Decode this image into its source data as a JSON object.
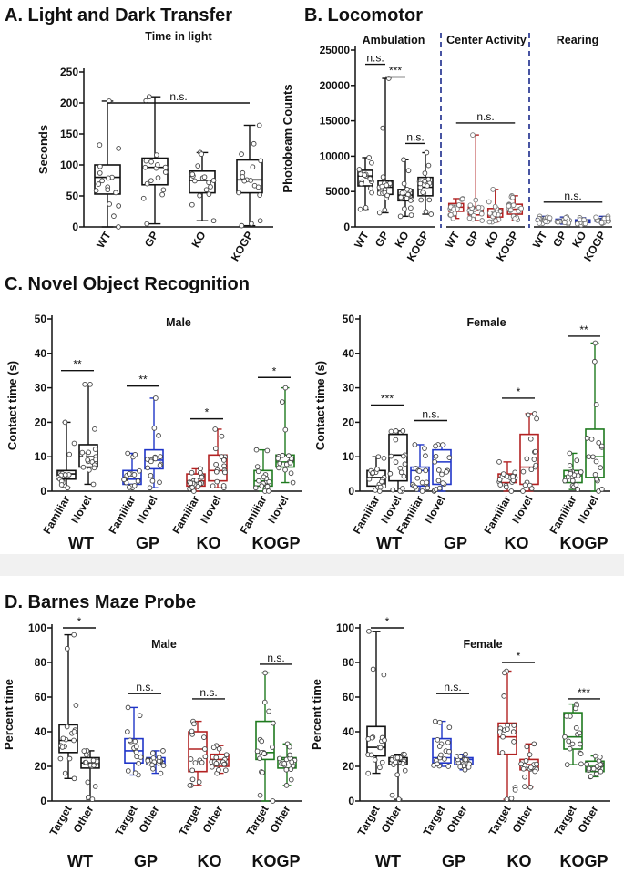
{
  "chart_data": [
    {
      "id": "A",
      "panel_label": "A. Light and Dark Transfer",
      "type": "box",
      "subtitle": "Time in light",
      "ylabel": "Seconds",
      "ylim": [
        0,
        250
      ],
      "yticks": [
        0,
        50,
        100,
        150,
        200,
        250
      ],
      "categories": [
        "WT",
        "GP",
        "KO",
        "KOGP"
      ],
      "colors": [
        "#111111",
        "#111111",
        "#111111",
        "#111111"
      ],
      "boxes": [
        {
          "min": 0,
          "q1": 53,
          "median": 80,
          "q3": 100,
          "max": 203
        },
        {
          "min": 5,
          "q1": 68,
          "median": 96,
          "q3": 111,
          "max": 210
        },
        {
          "min": 10,
          "q1": 55,
          "median": 75,
          "q3": 90,
          "max": 120
        },
        {
          "min": 2,
          "q1": 55,
          "median": 76,
          "q3": 108,
          "max": 164
        }
      ],
      "sig": [
        {
          "from": 0,
          "to": 3,
          "y": 200,
          "label": "n.s."
        }
      ]
    },
    {
      "id": "B1",
      "panel_label": "B. Locomotor",
      "type": "box",
      "subtitle": "Ambulation",
      "ylabel": "Photobeam Counts",
      "ylim": [
        0,
        25000
      ],
      "yticks": [
        0,
        5000,
        10000,
        15000,
        20000,
        25000
      ],
      "categories": [
        "WT",
        "GP",
        "KO",
        "KOGP"
      ],
      "colors": [
        "#111111",
        "#111111",
        "#111111",
        "#111111"
      ],
      "boxes": [
        {
          "min": 2500,
          "q1": 5800,
          "median": 7200,
          "q3": 8000,
          "max": 9800
        },
        {
          "min": 2000,
          "q1": 4600,
          "median": 5600,
          "q3": 6500,
          "max": 21000
        },
        {
          "min": 1500,
          "q1": 3700,
          "median": 4500,
          "q3": 5300,
          "max": 9500
        },
        {
          "min": 1800,
          "q1": 4400,
          "median": 5600,
          "q3": 7000,
          "max": 10500
        }
      ],
      "sig": [
        {
          "from": 0,
          "to": 1,
          "y": 23000,
          "label": "n.s."
        },
        {
          "from": 1,
          "to": 2,
          "y": 21200,
          "label": "***"
        },
        {
          "from": 2,
          "to": 3,
          "y": 11800,
          "label": "n.s."
        }
      ]
    },
    {
      "id": "B2",
      "type": "box",
      "subtitle": "Center Activity",
      "ylim": [
        0,
        25000
      ],
      "categories": [
        "WT",
        "GP",
        "KO",
        "KOGP"
      ],
      "colors": [
        "#b22222",
        "#b22222",
        "#b22222",
        "#b22222"
      ],
      "boxes": [
        {
          "min": 1200,
          "q1": 2200,
          "median": 2800,
          "q3": 3300,
          "max": 4000
        },
        {
          "min": 900,
          "q1": 1700,
          "median": 2300,
          "q3": 2800,
          "max": 13000
        },
        {
          "min": 700,
          "q1": 1400,
          "median": 1900,
          "q3": 2600,
          "max": 5300
        },
        {
          "min": 1000,
          "q1": 1800,
          "median": 2500,
          "q3": 3200,
          "max": 4400
        }
      ],
      "sig": [
        {
          "from": 0,
          "to": 3,
          "y": 14700,
          "label": "n.s."
        }
      ]
    },
    {
      "id": "B3",
      "type": "box",
      "subtitle": "Rearing",
      "ylim": [
        0,
        25000
      ],
      "categories": [
        "WT",
        "GP",
        "KO",
        "KOGP"
      ],
      "colors": [
        "#2233aa",
        "#2233aa",
        "#2233aa",
        "#2233aa"
      ],
      "boxes": [
        {
          "min": 500,
          "q1": 800,
          "median": 1000,
          "q3": 1200,
          "max": 1500
        },
        {
          "min": 400,
          "q1": 700,
          "median": 900,
          "q3": 1100,
          "max": 1400
        },
        {
          "min": 300,
          "q1": 600,
          "median": 800,
          "q3": 1000,
          "max": 1300
        },
        {
          "min": 500,
          "q1": 800,
          "median": 1000,
          "q3": 1200,
          "max": 1500
        }
      ],
      "sig": [
        {
          "from": 0,
          "to": 3,
          "y": 3500,
          "label": "n.s."
        }
      ]
    },
    {
      "id": "C1",
      "panel_label": "C. Novel Object Recognition",
      "type": "box",
      "subtitle": "Male",
      "ylabel": "Contact time (s)",
      "ylim": [
        0,
        50
      ],
      "yticks": [
        0,
        10,
        20,
        30,
        40,
        50
      ],
      "categories": [
        "Familiar",
        "Novel",
        "Familiar",
        "Novel",
        "Familiar",
        "Novel",
        "Familiar",
        "Novel"
      ],
      "groups": [
        "WT",
        "GP",
        "KO",
        "KOGP"
      ],
      "colors": [
        "#111111",
        "#111111",
        "#1f35c8",
        "#1f35c8",
        "#b22222",
        "#b22222",
        "#1e7a1e",
        "#1e7a1e"
      ],
      "boxes": [
        {
          "min": 1,
          "q1": 3.5,
          "median": 5,
          "q3": 6,
          "max": 20
        },
        {
          "min": 2,
          "q1": 7,
          "median": 10,
          "q3": 13.5,
          "max": 31
        },
        {
          "min": 1,
          "q1": 2,
          "median": 3.5,
          "q3": 6,
          "max": 11
        },
        {
          "min": 1,
          "q1": 6.5,
          "median": 9,
          "q3": 12,
          "max": 27
        },
        {
          "min": 0,
          "q1": 1.5,
          "median": 3,
          "q3": 5,
          "max": 6.5
        },
        {
          "min": 1,
          "q1": 3,
          "median": 6,
          "q3": 10.5,
          "max": 18
        },
        {
          "min": 0,
          "q1": 1.5,
          "median": 3,
          "q3": 6,
          "max": 12
        },
        {
          "min": 2.5,
          "q1": 7,
          "median": 8.5,
          "q3": 10.5,
          "max": 30
        }
      ],
      "sig": [
        {
          "from": 0,
          "to": 1,
          "y": 35,
          "label": "**"
        },
        {
          "from": 2,
          "to": 3,
          "y": 30.5,
          "label": "**"
        },
        {
          "from": 4,
          "to": 5,
          "y": 21,
          "label": "*"
        },
        {
          "from": 6,
          "to": 7,
          "y": 33,
          "label": "*"
        }
      ]
    },
    {
      "id": "C2",
      "type": "box",
      "subtitle": "Female",
      "ylabel": "Contact time (s)",
      "ylim": [
        0,
        50
      ],
      "yticks": [
        0,
        10,
        20,
        30,
        40,
        50
      ],
      "categories": [
        "Familiar",
        "Novel",
        "Familiar",
        "Novel",
        "Familiar",
        "Novel",
        "Familiar",
        "Novel"
      ],
      "groups": [
        "WT",
        "GP",
        "KO",
        "KOGP"
      ],
      "colors": [
        "#111111",
        "#111111",
        "#1f35c8",
        "#1f35c8",
        "#b22222",
        "#b22222",
        "#1e7a1e",
        "#1e7a1e"
      ],
      "boxes": [
        {
          "min": 0,
          "q1": 1.5,
          "median": 4,
          "q3": 6,
          "max": 10
        },
        {
          "min": 0,
          "q1": 3,
          "median": 10.5,
          "q3": 16.5,
          "max": 17.5
        },
        {
          "min": 0,
          "q1": 1.5,
          "median": 6,
          "q3": 7,
          "max": 13.5
        },
        {
          "min": 0,
          "q1": 2,
          "median": 8.5,
          "q3": 12,
          "max": 13.5
        },
        {
          "min": 0,
          "q1": 2.5,
          "median": 4,
          "q3": 5,
          "max": 8.5
        },
        {
          "min": 0,
          "q1": 2,
          "median": 7,
          "q3": 16.5,
          "max": 22.5
        },
        {
          "min": 0.5,
          "q1": 2.5,
          "median": 4.5,
          "q3": 6,
          "max": 11
        },
        {
          "min": 0,
          "q1": 4,
          "median": 10,
          "q3": 18,
          "max": 43
        }
      ],
      "sig": [
        {
          "from": 0,
          "to": 1,
          "y": 25,
          "label": "***"
        },
        {
          "from": 2,
          "to": 3,
          "y": 20.5,
          "label": "n.s."
        },
        {
          "from": 4,
          "to": 5,
          "y": 27,
          "label": "*"
        },
        {
          "from": 6,
          "to": 7,
          "y": 45,
          "label": "**"
        }
      ]
    },
    {
      "id": "D1",
      "panel_label": "D. Barnes Maze Probe",
      "type": "box",
      "subtitle": "Male",
      "ylabel": "Percent time",
      "ylim": [
        0,
        100
      ],
      "yticks": [
        0,
        20,
        40,
        60,
        80,
        100
      ],
      "categories": [
        "Target",
        "Other",
        "Target",
        "Other",
        "Target",
        "Other",
        "Target",
        "Other"
      ],
      "groups": [
        "WT",
        "GP",
        "KO",
        "KOGP"
      ],
      "colors": [
        "#111111",
        "#111111",
        "#1f35c8",
        "#1f35c8",
        "#b22222",
        "#b22222",
        "#1e7a1e",
        "#1e7a1e"
      ],
      "boxes": [
        {
          "min": 13,
          "q1": 28,
          "median": 35,
          "q3": 44,
          "max": 96
        },
        {
          "min": 1,
          "q1": 19,
          "median": 22,
          "q3": 25,
          "max": 29
        },
        {
          "min": 15,
          "q1": 22,
          "median": 29,
          "q3": 36,
          "max": 54
        },
        {
          "min": 16,
          "q1": 21,
          "median": 23,
          "q3": 25,
          "max": 29
        },
        {
          "min": 9,
          "q1": 17,
          "median": 30,
          "q3": 40,
          "max": 46
        },
        {
          "min": 16,
          "q1": 20,
          "median": 24,
          "q3": 27,
          "max": 32
        },
        {
          "min": 0,
          "q1": 24,
          "median": 28,
          "q3": 46,
          "max": 74
        },
        {
          "min": 9,
          "q1": 19,
          "median": 24,
          "q3": 25,
          "max": 33
        }
      ],
      "sig": [
        {
          "from": 0,
          "to": 1,
          "y": 100,
          "label": "*"
        },
        {
          "from": 2,
          "to": 3,
          "y": 62,
          "label": "n.s."
        },
        {
          "from": 4,
          "to": 5,
          "y": 59,
          "label": "n.s."
        },
        {
          "from": 6,
          "to": 7,
          "y": 79,
          "label": "n.s."
        }
      ]
    },
    {
      "id": "D2",
      "type": "box",
      "subtitle": "Female",
      "ylabel": "Percent time",
      "ylim": [
        0,
        100
      ],
      "yticks": [
        0,
        20,
        40,
        60,
        80,
        100
      ],
      "categories": [
        "Target",
        "Other",
        "Target",
        "Other",
        "Target",
        "Other",
        "Target",
        "Other"
      ],
      "groups": [
        "WT",
        "GP",
        "KO",
        "KOGP"
      ],
      "colors": [
        "#111111",
        "#111111",
        "#1f35c8",
        "#1f35c8",
        "#b22222",
        "#b22222",
        "#1e7a1e",
        "#1e7a1e"
      ],
      "boxes": [
        {
          "min": 16,
          "q1": 26,
          "median": 31,
          "q3": 43,
          "max": 98
        },
        {
          "min": 1,
          "q1": 21,
          "median": 23,
          "q3": 25,
          "max": 27
        },
        {
          "min": 20,
          "q1": 22,
          "median": 25,
          "q3": 36,
          "max": 46
        },
        {
          "min": 18,
          "q1": 21,
          "median": 24,
          "q3": 25,
          "max": 27
        },
        {
          "min": 1,
          "q1": 27,
          "median": 37,
          "q3": 45,
          "max": 75
        },
        {
          "min": 8,
          "q1": 18,
          "median": 21,
          "q3": 24,
          "max": 33
        },
        {
          "min": 21,
          "q1": 30,
          "median": 37,
          "q3": 51,
          "max": 56
        },
        {
          "min": 14,
          "q1": 17,
          "median": 20,
          "q3": 23,
          "max": 26
        }
      ],
      "sig": [
        {
          "from": 0,
          "to": 1,
          "y": 100,
          "label": "*"
        },
        {
          "from": 2,
          "to": 3,
          "y": 62,
          "label": "n.s."
        },
        {
          "from": 4,
          "to": 5,
          "y": 80,
          "label": "*"
        },
        {
          "from": 6,
          "to": 7,
          "y": 59,
          "label": "***"
        }
      ]
    }
  ]
}
